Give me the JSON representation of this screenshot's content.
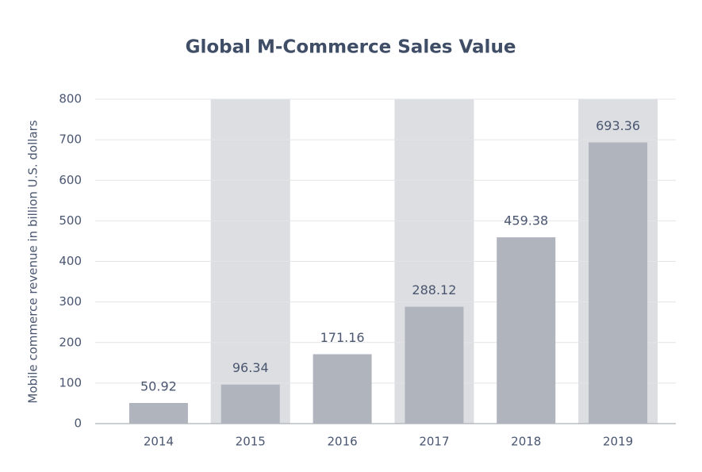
{
  "chart_data": {
    "type": "bar",
    "title": "Global M-Commerce Sales Value",
    "y_label": "Mobile commerce revenue in billion U.S. dollars",
    "categories": [
      "2014",
      "2015",
      "2016",
      "2017",
      "2018",
      "2019"
    ],
    "values": [
      50.92,
      96.34,
      171.16,
      288.12,
      459.38,
      693.36
    ],
    "color": "#b0b4bd",
    "band_color": "#dcdee1",
    "ylim": [
      0,
      800
    ],
    "yticks": [
      0,
      100,
      200,
      300,
      400,
      500,
      600,
      700,
      800
    ],
    "grid": true
  }
}
